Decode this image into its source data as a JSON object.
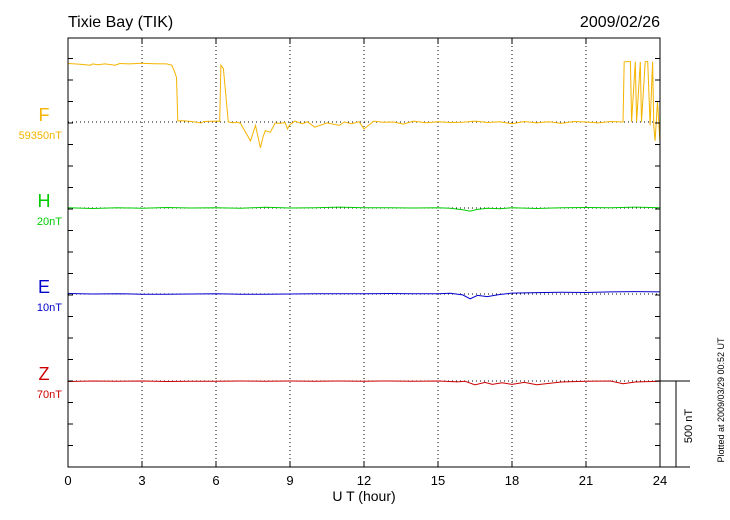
{
  "chart_data": {
    "type": "line",
    "title": "Tixie Bay (TIK)",
    "date": "2009/02/26",
    "xlabel": "U T (hour)",
    "xlim": [
      0,
      24
    ],
    "xticks": [
      0,
      3,
      6,
      9,
      12,
      15,
      18,
      21,
      24
    ],
    "grid": true,
    "scale_bar_label": "500 nT",
    "scale_bar_nT": 500,
    "plotted_note": "Plotted at 2009/03/29 00:52 UT",
    "series": [
      {
        "name": "F",
        "baseline_label": "59350nT",
        "color": "#f5b400",
        "x": [
          0.0,
          0.5,
          0.9,
          1.0,
          1.2,
          1.5,
          1.9,
          2.1,
          2.5,
          3.0,
          3.5,
          4.0,
          4.2,
          4.3,
          4.4,
          4.45,
          4.6,
          5.0,
          5.4,
          5.5,
          6.0,
          6.15,
          6.2,
          6.3,
          6.5,
          6.7,
          6.9,
          7.0,
          7.2,
          7.4,
          7.6,
          7.8,
          7.9,
          8.0,
          8.2,
          8.4,
          8.6,
          8.8,
          8.9,
          9.0,
          9.2,
          9.5,
          9.7,
          10.0,
          10.5,
          11.0,
          11.2,
          11.5,
          11.8,
          12.0,
          12.4,
          12.8,
          13.2,
          13.6,
          14.0,
          14.5,
          15.0,
          15.5,
          16.0,
          16.5,
          17.0,
          17.5,
          18.0,
          18.5,
          19.0,
          19.5,
          20.0,
          20.5,
          21.0,
          21.5,
          22.0,
          22.3,
          22.5,
          22.55,
          22.8,
          22.85,
          23.0,
          23.05,
          23.2,
          23.25,
          23.4,
          23.5,
          23.6,
          23.7,
          23.75,
          23.8,
          23.9,
          24.0
        ],
        "values": [
          340,
          336,
          330,
          338,
          333,
          338,
          330,
          340,
          338,
          341,
          339,
          338,
          330,
          300,
          260,
          5,
          8,
          3,
          -6,
          3,
          5,
          4,
          330,
          310,
          0,
          -4,
          -2,
          -10,
          -60,
          -110,
          -20,
          -150,
          -90,
          -50,
          -60,
          -5,
          -8,
          -3,
          -40,
          -15,
          5,
          -10,
          2,
          -30,
          -5,
          -20,
          0,
          -10,
          2,
          -40,
          5,
          -2,
          0,
          -12,
          5,
          -4,
          2,
          -3,
          -2,
          5,
          -3,
          2,
          -10,
          3,
          -5,
          2,
          -8,
          3,
          0,
          -5,
          3,
          2,
          0,
          350,
          352,
          0,
          351,
          0,
          350,
          0,
          350,
          353,
          -20,
          350,
          -25,
          -110,
          120,
          -120
        ]
      },
      {
        "name": "H",
        "baseline_label": "20nT",
        "color": "#00cc00",
        "x": [
          0,
          1,
          2,
          3,
          4,
          5,
          6,
          7,
          8,
          9,
          10,
          11,
          12,
          13,
          14,
          15,
          15.5,
          16.0,
          16.3,
          16.6,
          17.0,
          17.5,
          18,
          19,
          20,
          21,
          22,
          23,
          24
        ],
        "values": [
          1,
          -3,
          2,
          -2,
          3,
          0,
          2,
          -1,
          4,
          0,
          2,
          5,
          1,
          2,
          0,
          2,
          -2,
          -10,
          -18,
          -8,
          -2,
          -4,
          2,
          -3,
          1,
          3,
          2,
          5,
          2
        ]
      },
      {
        "name": "E",
        "baseline_label": "10nT",
        "color": "#0000cc",
        "x": [
          0,
          1,
          2,
          3,
          4,
          5,
          6,
          7,
          8,
          9,
          10,
          11,
          12,
          13,
          14,
          15,
          15.5,
          16.0,
          16.3,
          16.6,
          17.0,
          17.5,
          18,
          19,
          20,
          21,
          22,
          23,
          24
        ],
        "values": [
          3,
          0,
          2,
          -1,
          -2,
          0,
          1,
          -2,
          -1,
          0,
          1,
          2,
          1,
          3,
          2,
          2,
          4,
          -5,
          -28,
          -8,
          -15,
          -3,
          5,
          8,
          10,
          9,
          12,
          14,
          12
        ]
      },
      {
        "name": "Z",
        "baseline_label": "70nT",
        "color": "#cc0000",
        "x": [
          0,
          1,
          2,
          3,
          4,
          5,
          6,
          7,
          8,
          9,
          10,
          11,
          12,
          13,
          14,
          15,
          15.8,
          16.1,
          16.5,
          16.9,
          17.2,
          17.6,
          18.0,
          18.5,
          19.0,
          20,
          21,
          22,
          22.5,
          23,
          24
        ],
        "values": [
          -3,
          0,
          -2,
          0,
          -3,
          -1,
          -2,
          0,
          -1,
          0,
          -2,
          0,
          -1,
          0,
          -1,
          0,
          -5,
          -2,
          -22,
          -8,
          -20,
          -10,
          -20,
          -8,
          -22,
          -6,
          -2,
          0,
          -16,
          -6,
          -2
        ]
      }
    ]
  }
}
